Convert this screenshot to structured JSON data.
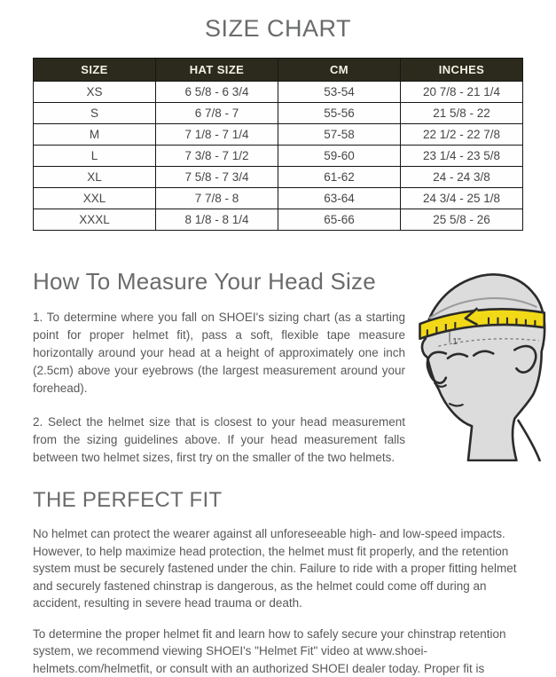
{
  "page": {
    "title": "SIZE CHART",
    "heading_color": "#6a6b6d",
    "text_color": "#57585a",
    "background": "#ffffff"
  },
  "size_table": {
    "header_bg": "#2b2a1d",
    "header_text_color": "#f6f2e2",
    "headers": [
      "SIZE",
      "HAT SIZE",
      "CM",
      "INCHES"
    ],
    "rows": [
      [
        "XS",
        "6 5/8 - 6 3/4",
        "53-54",
        "20 7/8 - 21 1/4"
      ],
      [
        "S",
        "6 7/8 - 7",
        "55-56",
        "21 5/8 - 22"
      ],
      [
        "M",
        "7 1/8 - 7 1/4",
        "57-58",
        "22 1/2 - 22 7/8"
      ],
      [
        "L",
        "7 3/8 - 7 1/2",
        "59-60",
        "23 1/4 - 23 5/8"
      ],
      [
        "XL",
        "7 5/8 - 7 3/4",
        "61-62",
        "24 - 24 3/8"
      ],
      [
        "XXL",
        "7 7/8 - 8",
        "63-64",
        "24 3/4 - 25 1/8"
      ],
      [
        "XXXL",
        "8 1/8 - 8 1/4",
        "65-66",
        "25 5/8 - 26"
      ]
    ]
  },
  "measure_section": {
    "heading": "How To Measure Your Head Size",
    "step1": "1. To determine where you fall on SHOEI's sizing chart (as a starting point for proper helmet fit), pass a soft, flexible tape measure horizontally around your head at a height of approximately one inch (2.5cm) above your eyebrows (the largest measurement around your forehead).",
    "step2": "2. Select the helmet size that is closest to your head measurement from the sizing guidelines above. If your head measurement falls between two helmet sizes, first try on the smaller of the two helmets.",
    "illustration": {
      "name": "head-with-tape-measure",
      "tape_color": "#f2d917",
      "label": "1\""
    }
  },
  "fit_section": {
    "heading": "THE PERFECT FIT",
    "para1": "No helmet can protect the wearer against all unforeseeable high- and low-speed impacts. However, to help maximize head protection, the helmet must fit properly, and the retention system must be securely fastened under the chin. Failure to ride with a proper fitting helmet and securely fastened chinstrap is dangerous, as the helmet could come off during an accident, resulting in severe head trauma or death.",
    "para2": "To determine the proper helmet fit and learn how to safely secure your chinstrap retention system, we recommend viewing SHOEI's \"Helmet Fit\" video at www.shoei-helmets.com/helmetfit, or consult with an authorized SHOEI dealer today. Proper fit is important not only for comfort, but for safety, as well."
  }
}
